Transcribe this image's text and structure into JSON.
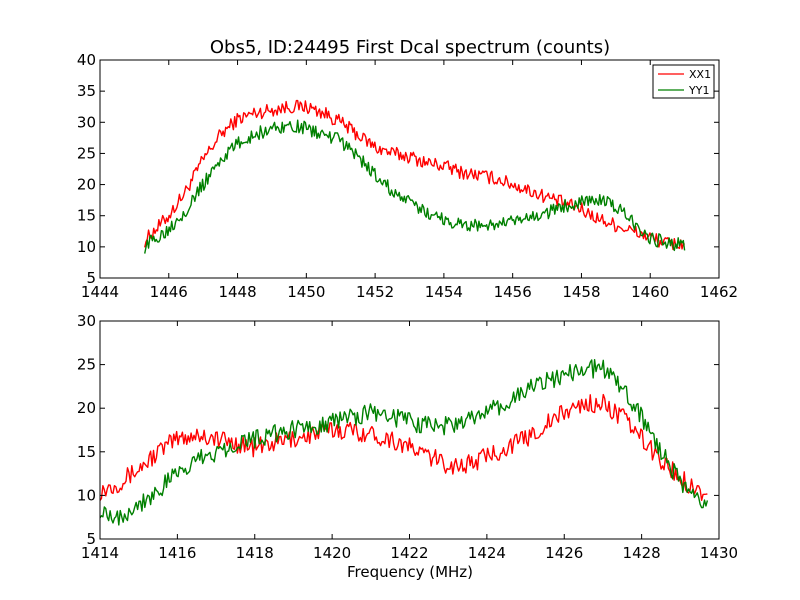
{
  "chart_data": [
    {
      "type": "line",
      "title": "Obs5, ID:24495 First Dcal spectrum (counts)",
      "xlabel": "",
      "ylabel": "",
      "xlim": [
        1444,
        1462
      ],
      "ylim": [
        5,
        40
      ],
      "xticks": [
        "1444",
        "1446",
        "1448",
        "1450",
        "1452",
        "1454",
        "1456",
        "1458",
        "1460",
        "1462"
      ],
      "yticks": [
        "5",
        "10",
        "15",
        "20",
        "25",
        "30",
        "35",
        "40"
      ],
      "grid": false,
      "legend": "top-right",
      "series": [
        {
          "name": "XX1",
          "color": "#ff0000",
          "x": [
            1445.3,
            1446.0,
            1446.5,
            1447.0,
            1447.5,
            1448.0,
            1448.5,
            1449.0,
            1449.5,
            1450.0,
            1450.5,
            1451.0,
            1451.5,
            1452.0,
            1452.5,
            1453.0,
            1453.5,
            1454.0,
            1454.5,
            1455.0,
            1455.5,
            1456.0,
            1456.5,
            1457.0,
            1457.5,
            1458.0,
            1458.5,
            1459.0,
            1459.5,
            1460.0,
            1460.5,
            1461.0
          ],
          "y": [
            11,
            15,
            19,
            24,
            28,
            30.5,
            31.5,
            32,
            32.5,
            32.5,
            31.5,
            30,
            28,
            26,
            25,
            24.5,
            23.5,
            23,
            22,
            21.5,
            21,
            20,
            19,
            18,
            17,
            16,
            14.5,
            13.5,
            12.5,
            11.5,
            10.5,
            10.5
          ]
        },
        {
          "name": "YY1",
          "color": "#008000",
          "x": [
            1445.3,
            1446.0,
            1446.5,
            1447.0,
            1447.5,
            1448.0,
            1448.5,
            1449.0,
            1449.5,
            1450.0,
            1450.5,
            1451.0,
            1451.5,
            1452.0,
            1452.5,
            1453.0,
            1453.5,
            1454.0,
            1454.5,
            1455.0,
            1455.5,
            1456.0,
            1456.5,
            1457.0,
            1457.5,
            1458.0,
            1458.5,
            1459.0,
            1459.5,
            1460.0,
            1460.5,
            1461.0
          ],
          "y": [
            10,
            13,
            16,
            20,
            24,
            26.5,
            28,
            29,
            29.5,
            29,
            28,
            27,
            24.5,
            21.5,
            19,
            17,
            15.5,
            14.5,
            13.5,
            13.5,
            13.5,
            14,
            14.5,
            15.5,
            16.5,
            17.5,
            17.5,
            16.5,
            14,
            11.5,
            10.5,
            10.5
          ]
        }
      ]
    },
    {
      "type": "line",
      "title": "",
      "xlabel": "Frequency (MHz)",
      "ylabel": "",
      "xlim": [
        1414,
        1430
      ],
      "ylim": [
        5,
        30
      ],
      "xticks": [
        "1414",
        "1416",
        "1418",
        "1420",
        "1422",
        "1424",
        "1426",
        "1428",
        "1430"
      ],
      "yticks": [
        "5",
        "10",
        "15",
        "20",
        "25",
        "30"
      ],
      "grid": false,
      "legend": "none",
      "series": [
        {
          "name": "XX1",
          "color": "#ff0000",
          "x": [
            1414.0,
            1414.5,
            1415.0,
            1415.5,
            1416.0,
            1416.5,
            1417.0,
            1417.5,
            1418.0,
            1418.5,
            1419.0,
            1419.5,
            1420.0,
            1420.5,
            1421.0,
            1421.5,
            1422.0,
            1422.5,
            1423.0,
            1423.5,
            1424.0,
            1424.5,
            1425.0,
            1425.5,
            1426.0,
            1426.5,
            1427.0,
            1427.5,
            1428.0,
            1428.5,
            1429.0,
            1429.5,
            1429.7
          ],
          "y": [
            10.5,
            11.5,
            13,
            15,
            16.5,
            17,
            16.5,
            16,
            15.5,
            16,
            16.5,
            17,
            17.5,
            17.5,
            17,
            16.5,
            15.5,
            14.5,
            13.5,
            13.5,
            14.5,
            15.5,
            16.5,
            18,
            19.5,
            20.5,
            20.5,
            19,
            16.5,
            14,
            12,
            10.5,
            10.5
          ]
        },
        {
          "name": "YY1",
          "color": "#008000",
          "x": [
            1414.0,
            1414.5,
            1415.0,
            1415.5,
            1416.0,
            1416.5,
            1417.0,
            1417.5,
            1418.0,
            1418.5,
            1419.0,
            1419.5,
            1420.0,
            1420.5,
            1421.0,
            1421.5,
            1422.0,
            1422.5,
            1423.0,
            1423.5,
            1424.0,
            1424.5,
            1425.0,
            1425.5,
            1426.0,
            1426.5,
            1427.0,
            1427.5,
            1428.0,
            1428.5,
            1429.0,
            1429.5,
            1429.7
          ],
          "y": [
            8.5,
            7.5,
            9,
            10.5,
            12.5,
            14,
            15,
            16,
            16.5,
            17,
            17.5,
            18,
            18.5,
            19,
            19.5,
            19,
            18.5,
            18,
            18,
            18.5,
            19.5,
            20.5,
            22,
            23,
            24,
            24.5,
            24.5,
            22.5,
            19,
            15,
            11.5,
            9.5,
            8.5
          ]
        }
      ]
    }
  ]
}
